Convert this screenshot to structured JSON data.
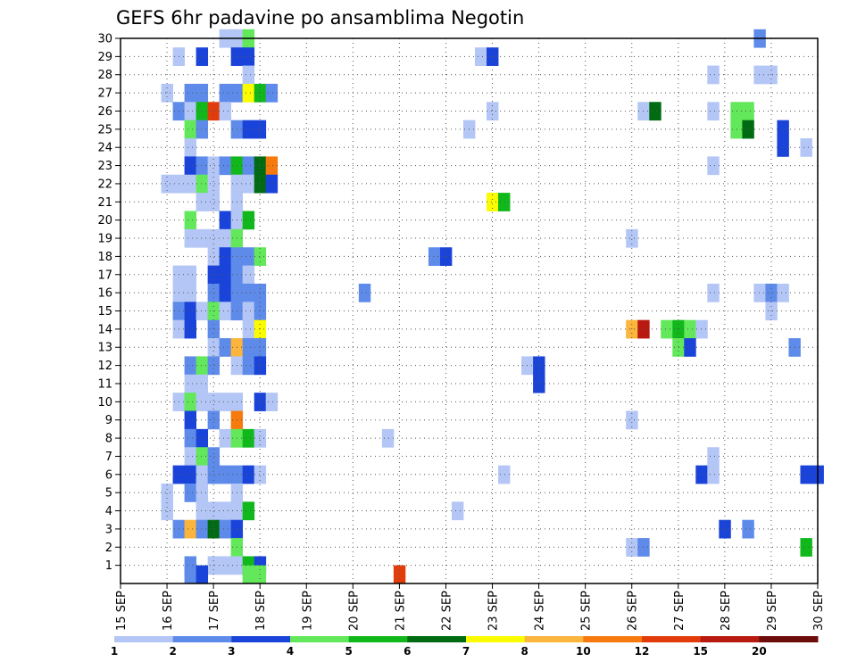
{
  "chart_data": {
    "type": "heatmap",
    "title": "GEFS 6hr padavine po ansamblima Negotin",
    "x_ticks": [
      "15 SEP",
      "16 SEP",
      "17 SEP",
      "18 SEP",
      "19 SEP",
      "20 SEP",
      "21 SEP",
      "22 SEP",
      "23 SEP",
      "24 SEP",
      "25 SEP",
      "26 SEP",
      "27 SEP",
      "28 SEP",
      "29 SEP",
      "30 SEP"
    ],
    "y_ticks": [
      "1",
      "2",
      "3",
      "4",
      "5",
      "6",
      "7",
      "8",
      "9",
      "10",
      "11",
      "12",
      "13",
      "14",
      "15",
      "16",
      "17",
      "18",
      "19",
      "20",
      "21",
      "22",
      "23",
      "24",
      "25",
      "26",
      "27",
      "28",
      "29",
      "30"
    ],
    "x_step": "6hr",
    "y_range": [
      0,
      30
    ],
    "grid": true,
    "colorbar": {
      "labels": [
        "1",
        "2",
        "3",
        "4",
        "5",
        "6",
        "7",
        "8",
        "10",
        "12",
        "15",
        "20"
      ],
      "colors": [
        "#b3c6f5",
        "#5e8bea",
        "#1a44d9",
        "#62e85a",
        "#11b81b",
        "#006b12",
        "#fcfc00",
        "#fbb43c",
        "#f77a0f",
        "#e33c0c",
        "#b81a10",
        "#6e0b0b"
      ]
    },
    "cells": [
      [
        17.25,
        30,
        1
      ],
      [
        17.5,
        30,
        1
      ],
      [
        17.75,
        30,
        4
      ],
      [
        16.25,
        29,
        1
      ],
      [
        16.75,
        29,
        3
      ],
      [
        17.5,
        29,
        3
      ],
      [
        17.75,
        29,
        3
      ],
      [
        22.75,
        29,
        1
      ],
      [
        23,
        29,
        3
      ],
      [
        28.75,
        30,
        2
      ],
      [
        17.75,
        28,
        1
      ],
      [
        27.75,
        28,
        1
      ],
      [
        28.75,
        28,
        1
      ],
      [
        29,
        28,
        1
      ],
      [
        16,
        27,
        1
      ],
      [
        16.5,
        27,
        2
      ],
      [
        16.75,
        27,
        2
      ],
      [
        17.25,
        27,
        2
      ],
      [
        17.5,
        27,
        2
      ],
      [
        17.75,
        27,
        7
      ],
      [
        18,
        27,
        5
      ],
      [
        18.25,
        27,
        2
      ],
      [
        16.25,
        26,
        2
      ],
      [
        16.5,
        26,
        1
      ],
      [
        16.75,
        26,
        5
      ],
      [
        17,
        26,
        10
      ],
      [
        17.25,
        26,
        1
      ],
      [
        23,
        26,
        1
      ],
      [
        26.25,
        26,
        1
      ],
      [
        26.5,
        26,
        6
      ],
      [
        27.75,
        26,
        1
      ],
      [
        28.25,
        26,
        4
      ],
      [
        28.5,
        26,
        4
      ],
      [
        16.5,
        25,
        4
      ],
      [
        16.75,
        25,
        2
      ],
      [
        17.5,
        25,
        2
      ],
      [
        17.75,
        25,
        3
      ],
      [
        18,
        25,
        3
      ],
      [
        22.5,
        25,
        1
      ],
      [
        28.25,
        25,
        4
      ],
      [
        28.5,
        25,
        6
      ],
      [
        29.25,
        25,
        3
      ],
      [
        16.5,
        24,
        1
      ],
      [
        29.25,
        24,
        3
      ],
      [
        29.75,
        24,
        1
      ],
      [
        16.5,
        23,
        3
      ],
      [
        16.75,
        23,
        2
      ],
      [
        17,
        23,
        1
      ],
      [
        17.25,
        23,
        2
      ],
      [
        17.5,
        23,
        5
      ],
      [
        17.75,
        23,
        2
      ],
      [
        18,
        23,
        6
      ],
      [
        18.25,
        23,
        9
      ],
      [
        27.75,
        23,
        1
      ],
      [
        16,
        22,
        1
      ],
      [
        16.25,
        22,
        1
      ],
      [
        16.5,
        22,
        1
      ],
      [
        16.75,
        22,
        4
      ],
      [
        17,
        22,
        1
      ],
      [
        17.5,
        22,
        1
      ],
      [
        17.75,
        22,
        1
      ],
      [
        18,
        22,
        6
      ],
      [
        18.25,
        22,
        3
      ],
      [
        16.75,
        21,
        1
      ],
      [
        17,
        21,
        1
      ],
      [
        17.5,
        21,
        1
      ],
      [
        23,
        21,
        7
      ],
      [
        23.25,
        21,
        5
      ],
      [
        16.5,
        20,
        4
      ],
      [
        17.25,
        20,
        3
      ],
      [
        17.5,
        20,
        1
      ],
      [
        17.75,
        20,
        5
      ],
      [
        16.5,
        19,
        1
      ],
      [
        16.75,
        19,
        1
      ],
      [
        17,
        19,
        1
      ],
      [
        17.25,
        19,
        1
      ],
      [
        17.5,
        19,
        4
      ],
      [
        26,
        19,
        1
      ],
      [
        17,
        18,
        1
      ],
      [
        17.25,
        18,
        3
      ],
      [
        17.5,
        18,
        2
      ],
      [
        17.75,
        18,
        2
      ],
      [
        18,
        18,
        4
      ],
      [
        21.75,
        18,
        2
      ],
      [
        22,
        18,
        3
      ],
      [
        16.25,
        17,
        1
      ],
      [
        16.5,
        17,
        1
      ],
      [
        17,
        17,
        3
      ],
      [
        17.25,
        17,
        3
      ],
      [
        17.5,
        17,
        2
      ],
      [
        17.75,
        17,
        1
      ],
      [
        28.75,
        16,
        1
      ],
      [
        29,
        16,
        2
      ],
      [
        29.25,
        16,
        1
      ],
      [
        16.25,
        16,
        1
      ],
      [
        16.5,
        16,
        1
      ],
      [
        17,
        16,
        2
      ],
      [
        17.25,
        16,
        3
      ],
      [
        17.5,
        16,
        2
      ],
      [
        17.75,
        16,
        2
      ],
      [
        18,
        16,
        2
      ],
      [
        20.25,
        16,
        2
      ],
      [
        27.75,
        16,
        1
      ],
      [
        29,
        15,
        1
      ],
      [
        16.25,
        15,
        2
      ],
      [
        16.5,
        15,
        3
      ],
      [
        16.75,
        15,
        1
      ],
      [
        17,
        15,
        4
      ],
      [
        17.25,
        15,
        1
      ],
      [
        17.5,
        15,
        2
      ],
      [
        17.75,
        15,
        1
      ],
      [
        18,
        15,
        2
      ],
      [
        16.25,
        14,
        1
      ],
      [
        16.5,
        14,
        3
      ],
      [
        17,
        14,
        2
      ],
      [
        17.75,
        14,
        1
      ],
      [
        18,
        14,
        7
      ],
      [
        26,
        14,
        8
      ],
      [
        26.25,
        14,
        11
      ],
      [
        26.75,
        14,
        4
      ],
      [
        27,
        14,
        5
      ],
      [
        27.25,
        14,
        4
      ],
      [
        27.5,
        14,
        1
      ],
      [
        17,
        13,
        1
      ],
      [
        17.25,
        13,
        2
      ],
      [
        17.5,
        13,
        8
      ],
      [
        17.75,
        13,
        2
      ],
      [
        18,
        13,
        2
      ],
      [
        27,
        13,
        4
      ],
      [
        27.25,
        13,
        3
      ],
      [
        29.5,
        13,
        2
      ],
      [
        16.5,
        12,
        2
      ],
      [
        16.75,
        12,
        4
      ],
      [
        17,
        12,
        2
      ],
      [
        17.5,
        12,
        1
      ],
      [
        17.75,
        12,
        2
      ],
      [
        18,
        12,
        3
      ],
      [
        23.75,
        12,
        1
      ],
      [
        24,
        12,
        3
      ],
      [
        16.5,
        11,
        1
      ],
      [
        16.75,
        11,
        1
      ],
      [
        24,
        11,
        3
      ],
      [
        16.25,
        10,
        1
      ],
      [
        16.5,
        10,
        4
      ],
      [
        16.75,
        10,
        1
      ],
      [
        17,
        10,
        1
      ],
      [
        17.25,
        10,
        1
      ],
      [
        17.5,
        10,
        1
      ],
      [
        18,
        10,
        3
      ],
      [
        18.25,
        10,
        1
      ],
      [
        16.5,
        9,
        3
      ],
      [
        17,
        9,
        2
      ],
      [
        17.5,
        9,
        9
      ],
      [
        26,
        9,
        1
      ],
      [
        16.5,
        8,
        2
      ],
      [
        16.75,
        8,
        3
      ],
      [
        17.25,
        8,
        1
      ],
      [
        17.5,
        8,
        4
      ],
      [
        17.75,
        8,
        5
      ],
      [
        18,
        8,
        1
      ],
      [
        20.75,
        8,
        1
      ],
      [
        16.5,
        7,
        1
      ],
      [
        16.75,
        7,
        4
      ],
      [
        17,
        7,
        2
      ],
      [
        27.75,
        7,
        1
      ],
      [
        16.25,
        6,
        3
      ],
      [
        16.5,
        6,
        3
      ],
      [
        16.75,
        6,
        1
      ],
      [
        17,
        6,
        2
      ],
      [
        17.25,
        6,
        2
      ],
      [
        17.5,
        6,
        2
      ],
      [
        17.75,
        6,
        3
      ],
      [
        18,
        6,
        1
      ],
      [
        23.25,
        6,
        1
      ],
      [
        27.5,
        6,
        3
      ],
      [
        27.75,
        6,
        1
      ],
      [
        29.75,
        6,
        3
      ],
      [
        30,
        6,
        3
      ],
      [
        16,
        5,
        1
      ],
      [
        16.5,
        5,
        2
      ],
      [
        16.75,
        5,
        1
      ],
      [
        17.5,
        5,
        1
      ],
      [
        16,
        4,
        1
      ],
      [
        16.75,
        4,
        1
      ],
      [
        17,
        4,
        1
      ],
      [
        17.25,
        4,
        1
      ],
      [
        17.5,
        4,
        1
      ],
      [
        17.75,
        4,
        5
      ],
      [
        22.25,
        4,
        1
      ],
      [
        16.25,
        3,
        2
      ],
      [
        16.5,
        3,
        8
      ],
      [
        16.75,
        3,
        2
      ],
      [
        17,
        3,
        6
      ],
      [
        17.25,
        3,
        2
      ],
      [
        17.5,
        3,
        3
      ],
      [
        28,
        3,
        3
      ],
      [
        28.5,
        3,
        2
      ],
      [
        17.5,
        2,
        4
      ],
      [
        26,
        2,
        1
      ],
      [
        26.25,
        2,
        2
      ],
      [
        29.75,
        2,
        5
      ],
      [
        16.5,
        1,
        2
      ],
      [
        17,
        1,
        1
      ],
      [
        17.25,
        1,
        1
      ],
      [
        17.5,
        1,
        1
      ],
      [
        17.75,
        1,
        5
      ],
      [
        18,
        1,
        3
      ],
      [
        16.5,
        0.5,
        2
      ],
      [
        16.75,
        0.5,
        3
      ],
      [
        17.75,
        0.5,
        4
      ],
      [
        18,
        0.5,
        4
      ],
      [
        21,
        0.5,
        10
      ]
    ]
  }
}
